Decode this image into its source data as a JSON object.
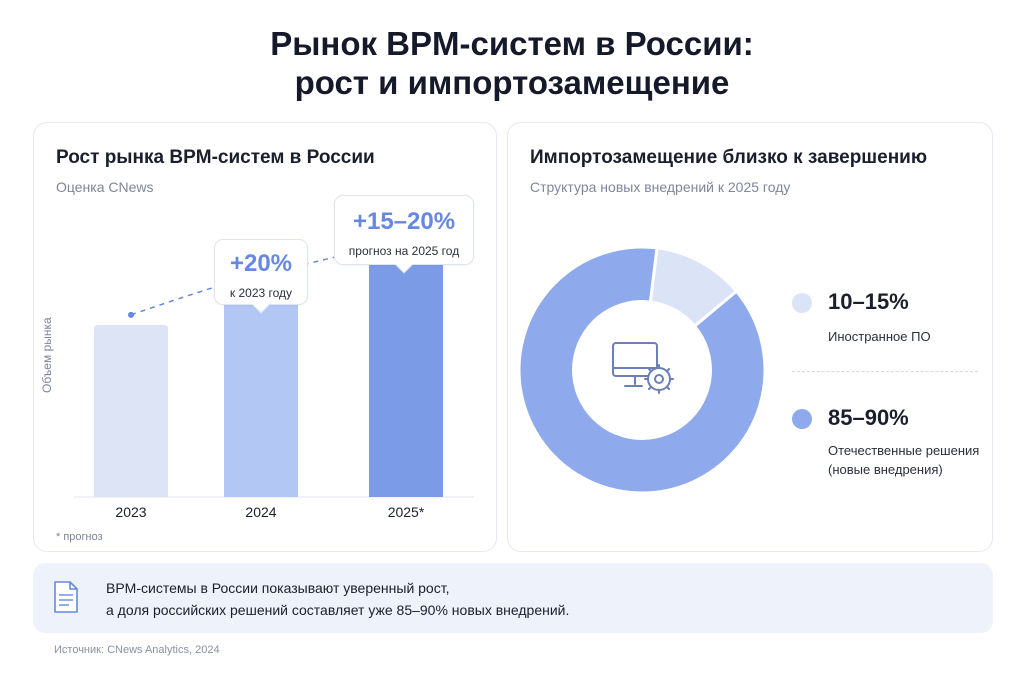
{
  "header": {
    "title_line1": "Рынок BPM-систем в России:",
    "title_line2": "рост и импортозамещение"
  },
  "left_card": {
    "title": "Рост рынка BPM-систем в России",
    "subtitle": "Оценка CNews",
    "y_axis_label": "Объем рынка",
    "footnote": "* прогноз",
    "callout_2024": {
      "value": "+20%",
      "label": "к 2023 году"
    },
    "callout_2025": {
      "value": "+15–20%",
      "label": "прогноз на 2025 год"
    }
  },
  "right_card": {
    "title": "Импортозамещение близко к завершению",
    "subtitle": "Структура новых внедрений к 2025 году",
    "center_icon": "monitor-gear-icon",
    "legend": [
      {
        "value": "10–15%",
        "label": "Иностранное ПО",
        "color": "#dbe4f7"
      },
      {
        "value": "85–90%",
        "label": "Отечественные решения (новые внедрения)",
        "color": "#8eaaec"
      }
    ]
  },
  "note": {
    "icon": "document-icon",
    "line1": "BPM-системы в России показывают уверенный рост,",
    "line2": "а доля российских решений составляет уже 85–90% новых внедрений."
  },
  "source": "Источник: CNews Analytics, 2024",
  "chart_data": [
    {
      "type": "bar",
      "categories": [
        "2023",
        "2024",
        "2025*"
      ],
      "values": [
        100,
        120,
        141
      ],
      "ylabel": "Объем рынка",
      "ylim": [
        0,
        158
      ],
      "colors": [
        "#dde4f6",
        "#b3c7f5",
        "#7c9be6"
      ],
      "trend_color": "#6688e0",
      "annotations": [
        "+20%",
        "+15–20%"
      ]
    },
    {
      "type": "pie",
      "categories": [
        "Иностранное ПО",
        "Отечественные решения"
      ],
      "values": [
        12,
        88
      ],
      "colors": [
        "#dbe4f7",
        "#8eaaec"
      ],
      "donut": true
    }
  ]
}
